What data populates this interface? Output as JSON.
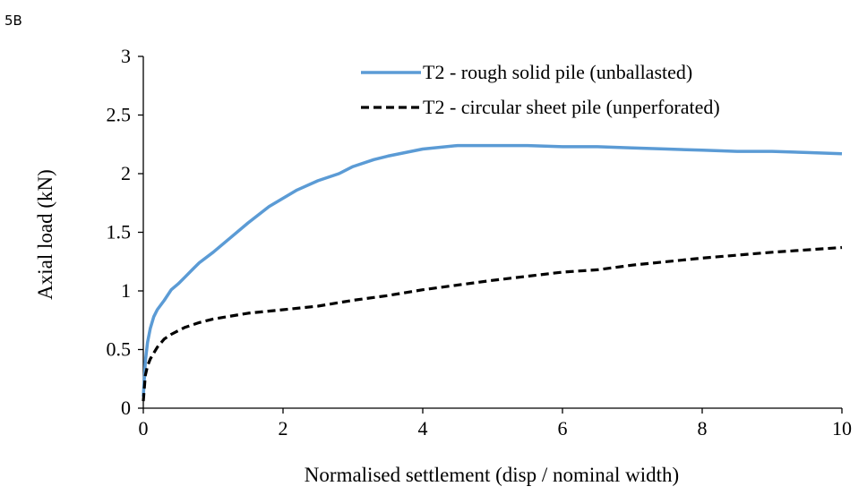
{
  "panel_label": "5B",
  "chart_data": {
    "type": "line",
    "title": "",
    "xlabel": "Normalised settlement (disp / nominal width)",
    "ylabel": "Axial load (kN)",
    "xlim": [
      0,
      10
    ],
    "ylim": [
      0,
      3
    ],
    "xticks": [
      0,
      2,
      4,
      6,
      8,
      10
    ],
    "yticks": [
      0,
      0.5,
      1,
      1.5,
      2,
      2.5,
      3
    ],
    "ytick_labels": [
      "0",
      "0.5",
      "1",
      "1.5",
      "2",
      "2.5",
      "3"
    ],
    "grid": false,
    "legend_position": "top-right",
    "series": [
      {
        "name": "T2 - rough solid pile (unballasted)",
        "color": "#5b9bd5",
        "style": "solid",
        "x": [
          0,
          0.03,
          0.06,
          0.1,
          0.15,
          0.2,
          0.3,
          0.4,
          0.5,
          0.6,
          0.7,
          0.8,
          1.0,
          1.2,
          1.5,
          1.8,
          2.0,
          2.2,
          2.5,
          2.8,
          3.0,
          3.3,
          3.5,
          4.0,
          4.5,
          5.0,
          5.5,
          6.0,
          6.5,
          7.0,
          7.5,
          8.0,
          8.5,
          9.0,
          9.5,
          10.0
        ],
        "y": [
          0.1,
          0.4,
          0.56,
          0.68,
          0.78,
          0.84,
          0.92,
          1.01,
          1.06,
          1.12,
          1.18,
          1.24,
          1.33,
          1.43,
          1.58,
          1.72,
          1.79,
          1.86,
          1.94,
          2.0,
          2.06,
          2.12,
          2.15,
          2.21,
          2.24,
          2.24,
          2.24,
          2.23,
          2.23,
          2.22,
          2.21,
          2.2,
          2.19,
          2.19,
          2.18,
          2.17
        ]
      },
      {
        "name": "T2 - circular sheet pile (unperforated)",
        "color": "#000000",
        "style": "dashed",
        "x": [
          0,
          0.03,
          0.06,
          0.1,
          0.15,
          0.2,
          0.3,
          0.4,
          0.5,
          0.6,
          0.8,
          1.0,
          1.5,
          2.0,
          2.5,
          3.0,
          3.5,
          4.0,
          5.0,
          6.0,
          6.5,
          7.0,
          8.0,
          9.0,
          10.0
        ],
        "y": [
          0.06,
          0.28,
          0.36,
          0.42,
          0.47,
          0.52,
          0.59,
          0.63,
          0.66,
          0.69,
          0.73,
          0.76,
          0.81,
          0.84,
          0.87,
          0.92,
          0.96,
          1.01,
          1.09,
          1.16,
          1.18,
          1.22,
          1.28,
          1.33,
          1.37
        ]
      }
    ]
  }
}
